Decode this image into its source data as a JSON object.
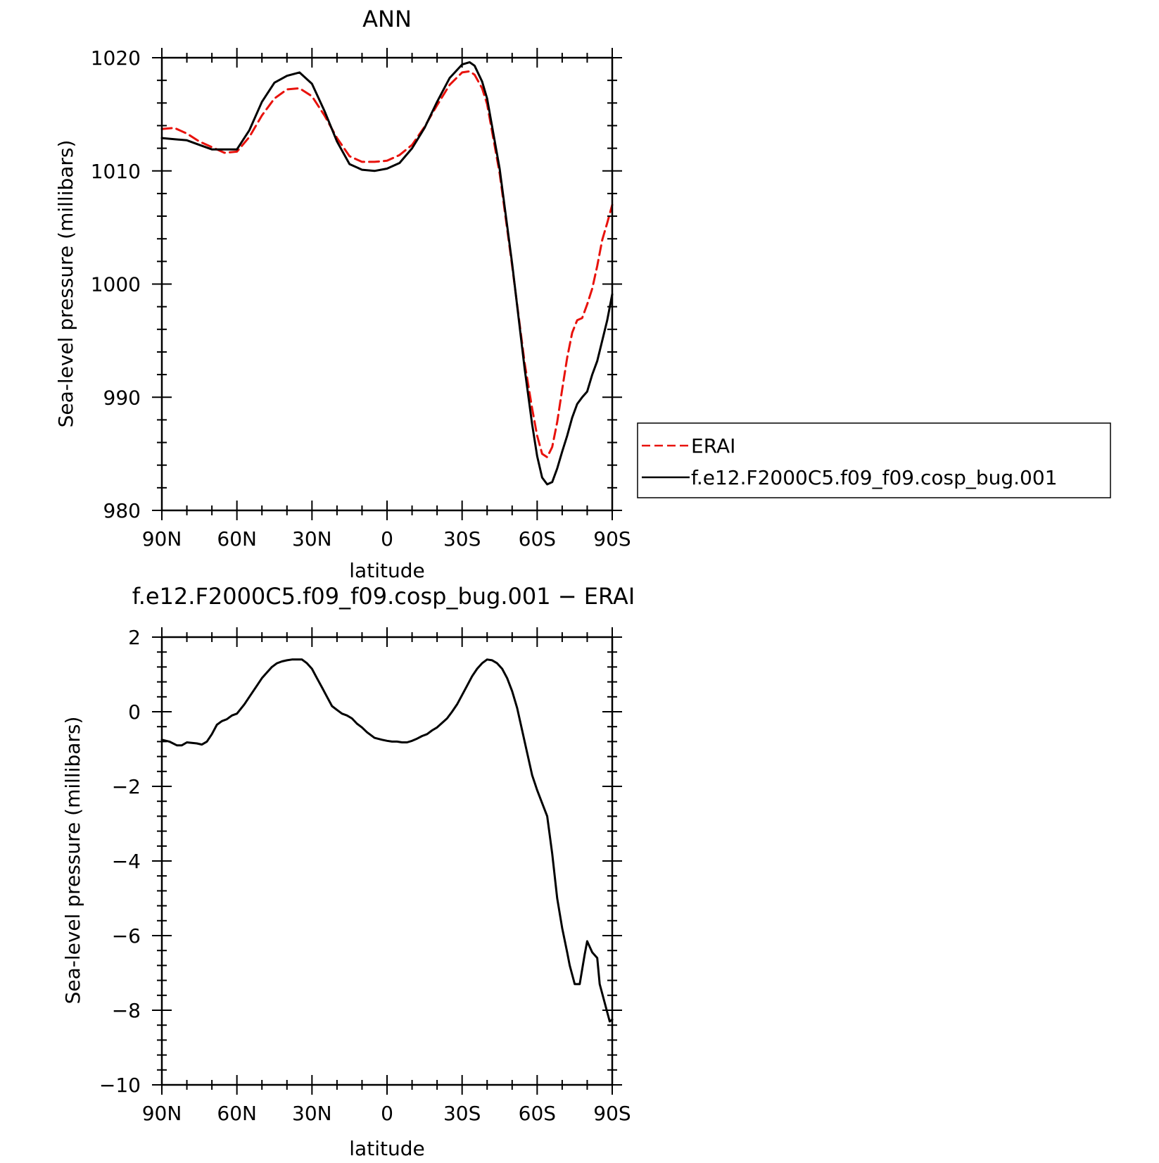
{
  "chart_data": [
    {
      "type": "line",
      "title": "ANN",
      "xlabel": "latitude",
      "ylabel": "Sea-level pressure (millibars)",
      "xlim": [
        90,
        -90
      ],
      "ylim": [
        980,
        1020
      ],
      "x_ticks": [
        90,
        60,
        30,
        0,
        -30,
        -60,
        -90
      ],
      "x_tick_labels": [
        "90N",
        "60N",
        "30N",
        "0",
        "30S",
        "60S",
        "90S"
      ],
      "y_ticks": [
        980,
        990,
        1000,
        1010,
        1020
      ],
      "y_tick_labels": [
        "980",
        "990",
        "1000",
        "1010",
        "1020"
      ],
      "legend_position": "right",
      "series": [
        {
          "name": "ERAI",
          "color": "#e8120c",
          "dash": "dashed",
          "x": [
            90,
            85,
            80,
            75,
            70,
            65,
            60,
            55,
            50,
            45,
            40,
            35,
            30,
            25,
            20,
            15,
            10,
            5,
            0,
            -5,
            -10,
            -15,
            -20,
            -25,
            -30,
            -33,
            -35,
            -38,
            -40,
            -45,
            -50,
            -55,
            -58,
            -60,
            -62,
            -64,
            -66,
            -68,
            -70,
            -72,
            -74,
            -76,
            -78,
            -80,
            -82,
            -84,
            -86,
            -88,
            -90
          ],
          "values": [
            1013.7,
            1013.8,
            1013.3,
            1012.6,
            1012.1,
            1011.6,
            1011.7,
            1013.0,
            1014.9,
            1016.4,
            1017.2,
            1017.3,
            1016.6,
            1014.9,
            1012.9,
            1011.3,
            1010.8,
            1010.8,
            1010.9,
            1011.4,
            1012.3,
            1013.9,
            1015.8,
            1017.6,
            1018.7,
            1018.8,
            1018.5,
            1017.3,
            1015.9,
            1009.8,
            1001.6,
            993.0,
            989.0,
            986.6,
            985.0,
            984.7,
            985.6,
            987.8,
            990.7,
            993.5,
            995.7,
            996.8,
            997.0,
            998.2,
            999.6,
            1001.6,
            1003.9,
            1005.4,
            1007.0
          ]
        },
        {
          "name": "f.e12.F2000C5.f09_f09.cosp_bug.001",
          "color": "#000000",
          "dash": "solid",
          "x": [
            90,
            85,
            80,
            75,
            70,
            65,
            60,
            55,
            50,
            45,
            40,
            35,
            30,
            25,
            20,
            15,
            10,
            5,
            0,
            -5,
            -10,
            -15,
            -20,
            -25,
            -30,
            -33,
            -35,
            -38,
            -40,
            -45,
            -50,
            -55,
            -58,
            -60,
            -62,
            -64,
            -66,
            -68,
            -70,
            -72,
            -74,
            -76,
            -78,
            -80,
            -82,
            -84,
            -86,
            -88,
            -90
          ],
          "values": [
            1012.9,
            1012.8,
            1012.7,
            1012.3,
            1011.9,
            1011.9,
            1011.9,
            1013.6,
            1016.1,
            1017.8,
            1018.4,
            1018.7,
            1017.7,
            1015.3,
            1012.6,
            1010.6,
            1010.1,
            1010.0,
            1010.2,
            1010.7,
            1012.0,
            1013.8,
            1016.1,
            1018.2,
            1019.4,
            1019.6,
            1019.3,
            1017.9,
            1016.4,
            1010.2,
            1001.8,
            992.5,
            987.6,
            984.8,
            982.9,
            982.3,
            982.5,
            983.7,
            985.2,
            986.6,
            988.2,
            989.4,
            990.0,
            990.5,
            992.0,
            993.2,
            995.0,
            996.8,
            999.1
          ]
        }
      ]
    },
    {
      "type": "line",
      "title": "f.e12.F2000C5.f09_f09.cosp_bug.001 − ERAI",
      "xlabel": "latitude",
      "ylabel": "Sea-level pressure (millibars)",
      "xlim": [
        90,
        -90
      ],
      "ylim": [
        -10,
        2
      ],
      "x_ticks": [
        90,
        60,
        30,
        0,
        -30,
        -60,
        -90
      ],
      "x_tick_labels": [
        "90N",
        "60N",
        "30N",
        "0",
        "30S",
        "60S",
        "90S"
      ],
      "y_ticks": [
        -10,
        -8,
        -6,
        -4,
        -2,
        0,
        2
      ],
      "y_tick_labels": [
        "−10",
        "−8",
        "−6",
        "−4",
        "−2",
        "0",
        "2"
      ],
      "series": [
        {
          "color": "#000000",
          "dash": "solid",
          "x": [
            90,
            87,
            84,
            82,
            80,
            76,
            74,
            72,
            70,
            68,
            66,
            64,
            62,
            60,
            57,
            55,
            52,
            50,
            48,
            46,
            44,
            42,
            40,
            38,
            36,
            34,
            32,
            30,
            28,
            26,
            24,
            22,
            20,
            18,
            16,
            14,
            12,
            10,
            8,
            5,
            2,
            0,
            -2,
            -4,
            -6,
            -8,
            -10,
            -12,
            -14,
            -16,
            -18,
            -20,
            -22,
            -24,
            -26,
            -28,
            -30,
            -32,
            -34,
            -36,
            -38,
            -40,
            -42,
            -44,
            -46,
            -48,
            -50,
            -52,
            -54,
            -56,
            -58,
            -60,
            -62,
            -64,
            -66,
            -68,
            -70,
            -72,
            -73,
            -75,
            -77,
            -79,
            -80,
            -82,
            -84,
            -85,
            -87,
            -89,
            -90
          ],
          "values": [
            -0.75,
            -0.8,
            -0.9,
            -0.9,
            -0.82,
            -0.85,
            -0.88,
            -0.8,
            -0.6,
            -0.35,
            -0.25,
            -0.2,
            -0.1,
            -0.05,
            0.2,
            0.4,
            0.7,
            0.9,
            1.05,
            1.2,
            1.3,
            1.35,
            1.38,
            1.4,
            1.4,
            1.4,
            1.3,
            1.15,
            0.9,
            0.65,
            0.4,
            0.15,
            0.05,
            -0.05,
            -0.1,
            -0.18,
            -0.32,
            -0.42,
            -0.55,
            -0.7,
            -0.75,
            -0.78,
            -0.8,
            -0.8,
            -0.82,
            -0.82,
            -0.78,
            -0.72,
            -0.65,
            -0.6,
            -0.5,
            -0.42,
            -0.3,
            -0.18,
            0.0,
            0.2,
            0.45,
            0.7,
            0.95,
            1.15,
            1.3,
            1.4,
            1.38,
            1.3,
            1.15,
            0.9,
            0.55,
            0.1,
            -0.5,
            -1.1,
            -1.7,
            -2.1,
            -2.45,
            -2.8,
            -3.8,
            -5.0,
            -5.8,
            -6.45,
            -6.8,
            -7.3,
            -7.3,
            -6.5,
            -6.15,
            -6.45,
            -6.6,
            -7.3,
            -7.8,
            -8.3,
            -8.25
          ]
        }
      ]
    }
  ]
}
